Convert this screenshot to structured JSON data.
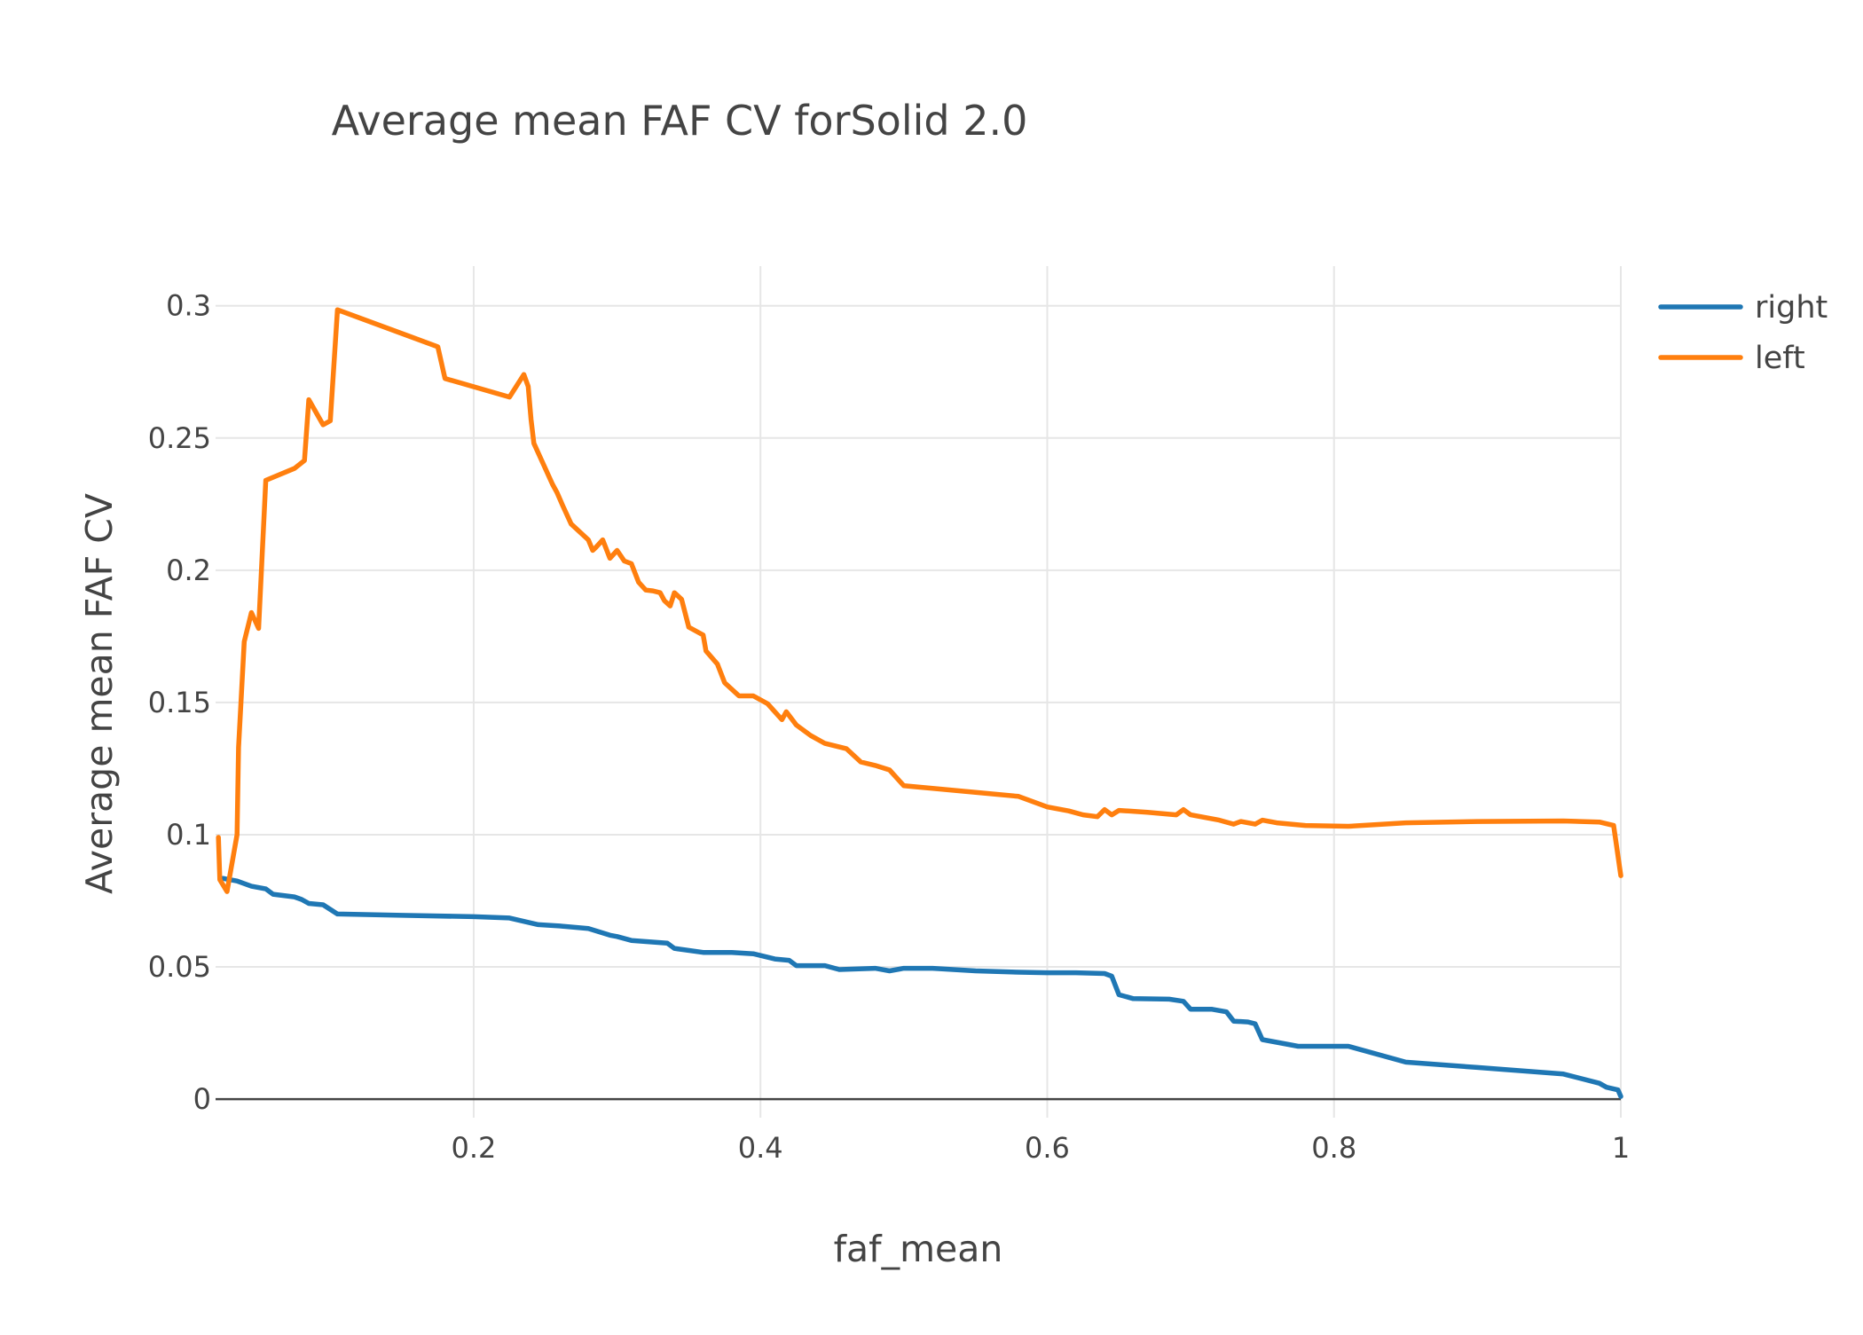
{
  "chart_data": {
    "type": "line",
    "title": "Average mean FAF CV forSolid 2.0",
    "xlabel": "faf_mean",
    "ylabel": "Average mean FAF CV",
    "xlim": [
      0.02,
      1.0
    ],
    "ylim": [
      -0.007,
      0.315
    ],
    "x_ticks": [
      0.2,
      0.4,
      0.6,
      0.8,
      1.0
    ],
    "x_tick_labels": [
      "0.2",
      "0.4",
      "0.6",
      "0.8",
      "1"
    ],
    "y_ticks": [
      0,
      0.05,
      0.1,
      0.15,
      0.2,
      0.25,
      0.3
    ],
    "y_tick_labels": [
      "0",
      "0.05",
      "0.1",
      "0.15",
      "0.2",
      "0.25",
      "0.3"
    ],
    "grid": true,
    "legend_position": "top-right",
    "series": [
      {
        "name": "right",
        "color": "#1f77b4",
        "points": [
          [
            0.025,
            0.0835
          ],
          [
            0.035,
            0.0825
          ],
          [
            0.045,
            0.0805
          ],
          [
            0.055,
            0.0795
          ],
          [
            0.06,
            0.0775
          ],
          [
            0.075,
            0.0765
          ],
          [
            0.08,
            0.0755
          ],
          [
            0.085,
            0.074
          ],
          [
            0.095,
            0.0735
          ],
          [
            0.105,
            0.07
          ],
          [
            0.15,
            0.0695
          ],
          [
            0.2,
            0.069
          ],
          [
            0.225,
            0.0685
          ],
          [
            0.245,
            0.066
          ],
          [
            0.26,
            0.0655
          ],
          [
            0.28,
            0.0645
          ],
          [
            0.295,
            0.062
          ],
          [
            0.3,
            0.0615
          ],
          [
            0.31,
            0.06
          ],
          [
            0.335,
            0.059
          ],
          [
            0.34,
            0.057
          ],
          [
            0.36,
            0.0555
          ],
          [
            0.38,
            0.0555
          ],
          [
            0.395,
            0.055
          ],
          [
            0.41,
            0.053
          ],
          [
            0.42,
            0.0525
          ],
          [
            0.425,
            0.0505
          ],
          [
            0.445,
            0.0505
          ],
          [
            0.455,
            0.049
          ],
          [
            0.48,
            0.0495
          ],
          [
            0.49,
            0.0485
          ],
          [
            0.5,
            0.0495
          ],
          [
            0.51,
            0.0495
          ],
          [
            0.52,
            0.0495
          ],
          [
            0.55,
            0.0485
          ],
          [
            0.58,
            0.048
          ],
          [
            0.6,
            0.0478
          ],
          [
            0.62,
            0.0478
          ],
          [
            0.64,
            0.0475
          ],
          [
            0.645,
            0.0465
          ],
          [
            0.65,
            0.0395
          ],
          [
            0.66,
            0.038
          ],
          [
            0.685,
            0.0378
          ],
          [
            0.695,
            0.037
          ],
          [
            0.7,
            0.034
          ],
          [
            0.715,
            0.034
          ],
          [
            0.725,
            0.033
          ],
          [
            0.73,
            0.0295
          ],
          [
            0.74,
            0.0292
          ],
          [
            0.745,
            0.0285
          ],
          [
            0.75,
            0.0225
          ],
          [
            0.76,
            0.0215
          ],
          [
            0.775,
            0.02
          ],
          [
            0.81,
            0.02
          ],
          [
            0.85,
            0.014
          ],
          [
            0.9,
            0.012
          ],
          [
            0.96,
            0.0095
          ],
          [
            0.985,
            0.006
          ],
          [
            0.99,
            0.0045
          ],
          [
            0.998,
            0.0035
          ],
          [
            1.0,
            0.001
          ]
        ]
      },
      {
        "name": "left",
        "color": "#ff7f0e",
        "points": [
          [
            0.022,
            0.099
          ],
          [
            0.023,
            0.083
          ],
          [
            0.028,
            0.0785
          ],
          [
            0.035,
            0.1
          ],
          [
            0.036,
            0.133
          ],
          [
            0.04,
            0.173
          ],
          [
            0.045,
            0.184
          ],
          [
            0.05,
            0.178
          ],
          [
            0.055,
            0.234
          ],
          [
            0.075,
            0.2385
          ],
          [
            0.082,
            0.2415
          ],
          [
            0.085,
            0.2645
          ],
          [
            0.095,
            0.255
          ],
          [
            0.1,
            0.2565
          ],
          [
            0.105,
            0.2985
          ],
          [
            0.155,
            0.2885
          ],
          [
            0.175,
            0.2845
          ],
          [
            0.18,
            0.2725
          ],
          [
            0.225,
            0.2655
          ],
          [
            0.235,
            0.274
          ],
          [
            0.238,
            0.2695
          ],
          [
            0.24,
            0.257
          ],
          [
            0.242,
            0.248
          ],
          [
            0.255,
            0.2325
          ],
          [
            0.258,
            0.2295
          ],
          [
            0.262,
            0.2245
          ],
          [
            0.268,
            0.2175
          ],
          [
            0.28,
            0.2115
          ],
          [
            0.283,
            0.2075
          ],
          [
            0.285,
            0.2085
          ],
          [
            0.29,
            0.2115
          ],
          [
            0.295,
            0.2045
          ],
          [
            0.3,
            0.2075
          ],
          [
            0.305,
            0.2035
          ],
          [
            0.31,
            0.2025
          ],
          [
            0.315,
            0.1955
          ],
          [
            0.32,
            0.1925
          ],
          [
            0.325,
            0.1922
          ],
          [
            0.33,
            0.1915
          ],
          [
            0.333,
            0.1885
          ],
          [
            0.337,
            0.1865
          ],
          [
            0.34,
            0.1915
          ],
          [
            0.345,
            0.189
          ],
          [
            0.35,
            0.1785
          ],
          [
            0.36,
            0.1755
          ],
          [
            0.362,
            0.1695
          ],
          [
            0.37,
            0.1645
          ],
          [
            0.375,
            0.1575
          ],
          [
            0.385,
            0.1525
          ],
          [
            0.395,
            0.1525
          ],
          [
            0.405,
            0.1495
          ],
          [
            0.415,
            0.1435
          ],
          [
            0.418,
            0.1465
          ],
          [
            0.425,
            0.1415
          ],
          [
            0.435,
            0.1375
          ],
          [
            0.445,
            0.1345
          ],
          [
            0.46,
            0.1325
          ],
          [
            0.47,
            0.1275
          ],
          [
            0.48,
            0.1262
          ],
          [
            0.49,
            0.1245
          ],
          [
            0.5,
            0.1185
          ],
          [
            0.52,
            0.1175
          ],
          [
            0.54,
            0.1165
          ],
          [
            0.58,
            0.1145
          ],
          [
            0.6,
            0.1105
          ],
          [
            0.615,
            0.109
          ],
          [
            0.625,
            0.1075
          ],
          [
            0.635,
            0.1068
          ],
          [
            0.64,
            0.1095
          ],
          [
            0.645,
            0.1075
          ],
          [
            0.65,
            0.1092
          ],
          [
            0.67,
            0.1085
          ],
          [
            0.69,
            0.1075
          ],
          [
            0.695,
            0.1095
          ],
          [
            0.7,
            0.1075
          ],
          [
            0.72,
            0.1055
          ],
          [
            0.73,
            0.104
          ],
          [
            0.735,
            0.105
          ],
          [
            0.745,
            0.104
          ],
          [
            0.75,
            0.1055
          ],
          [
            0.76,
            0.1045
          ],
          [
            0.78,
            0.1035
          ],
          [
            0.81,
            0.1032
          ],
          [
            0.85,
            0.1045
          ],
          [
            0.9,
            0.105
          ],
          [
            0.96,
            0.1052
          ],
          [
            0.985,
            0.1048
          ],
          [
            0.995,
            0.1035
          ],
          [
            1.0,
            0.0845
          ]
        ]
      }
    ]
  }
}
